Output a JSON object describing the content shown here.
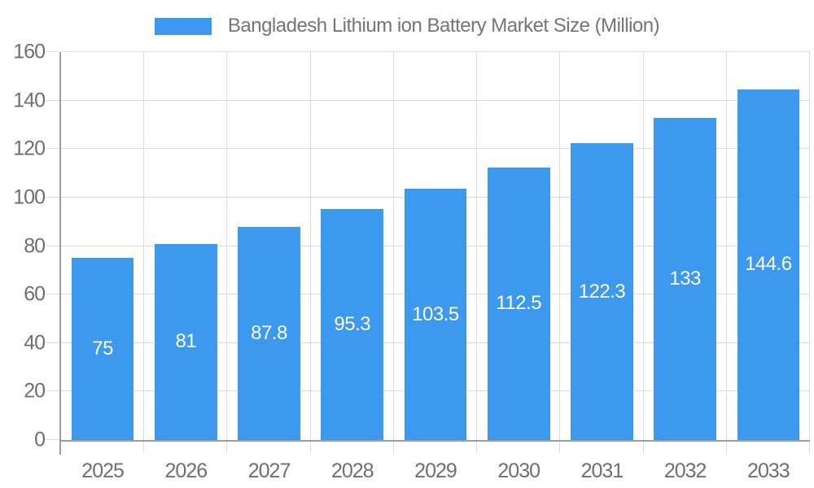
{
  "chart_data": {
    "type": "bar",
    "title": "",
    "legend": "Bangladesh Lithium ion Battery Market Size (Million)",
    "legend_position": "top-center",
    "categories": [
      "2025",
      "2026",
      "2027",
      "2028",
      "2029",
      "2030",
      "2031",
      "2032",
      "2033"
    ],
    "values": [
      75,
      81,
      87.8,
      95.3,
      103.5,
      112.5,
      122.3,
      133,
      144.6
    ],
    "value_labels": [
      "75",
      "81",
      "87.8",
      "95.3",
      "103.5",
      "112.5",
      "122.3",
      "133",
      "144.6"
    ],
    "xlabel": "",
    "ylabel": "",
    "ylim": [
      0,
      160
    ],
    "ytick_step": 20,
    "yticks": [
      0,
      20,
      40,
      60,
      80,
      100,
      120,
      140,
      160
    ],
    "grid": "both",
    "bar_width_fraction": 0.75,
    "value_label_position": "center-of-bar",
    "colors": {
      "bar": "#3C99EE",
      "grid": "#DCDCDC",
      "axis": "#9E9E9E",
      "tick_label": "#6F6F6F",
      "legend_text": "#757575",
      "value_label": "#FFFFFF",
      "background": "#FFFFFF"
    }
  }
}
